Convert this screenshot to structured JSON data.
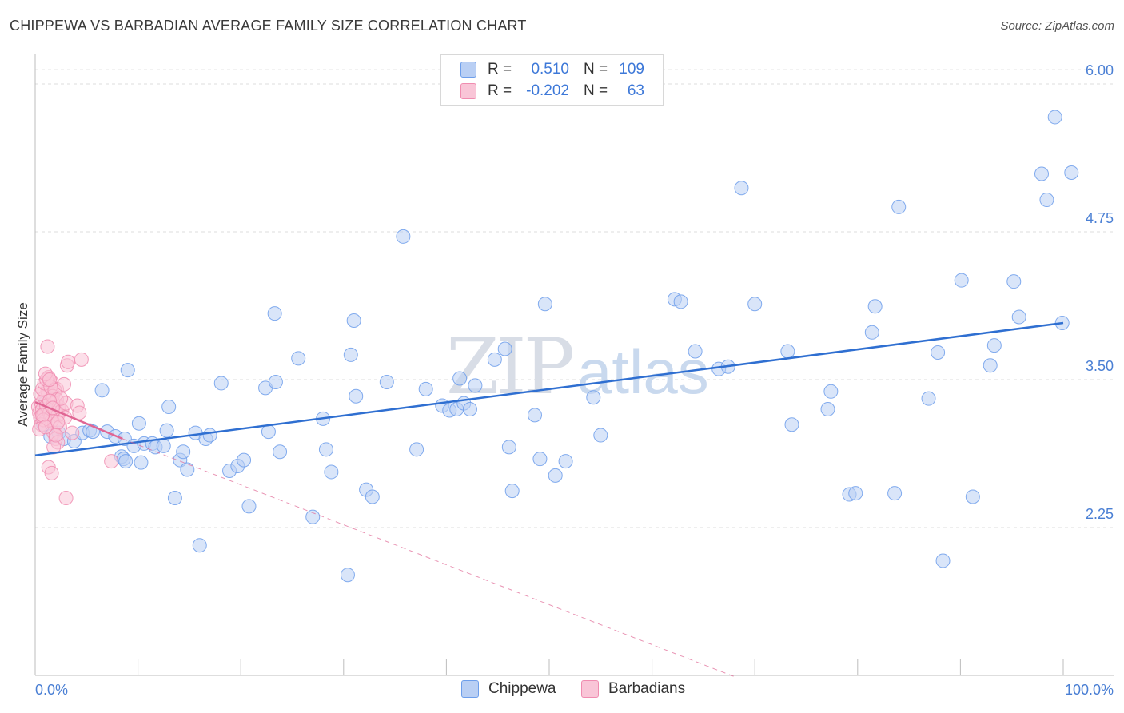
{
  "title": "CHIPPEWA VS BARBADIAN AVERAGE FAMILY SIZE CORRELATION CHART",
  "source": "Source: ZipAtlas.com",
  "watermark": {
    "zip": "ZIP",
    "atlas": "atlas"
  },
  "legend": {
    "rows": [
      {
        "r_label": "R =",
        "r_value": "0.510",
        "n_label": "N =",
        "n_value": "109",
        "color": "#6d9eeb",
        "fill": "#b9cff4"
      },
      {
        "r_label": "R =",
        "r_value": "-0.202",
        "n_label": "N =",
        "n_value": "63",
        "color": "#f08cb0",
        "fill": "#f9c5d7"
      }
    ]
  },
  "bottom_legend": [
    {
      "label": "Chippewa",
      "fill": "#b9cff4",
      "color": "#6d9eeb"
    },
    {
      "label": "Barbadians",
      "fill": "#f9c5d7",
      "color": "#f08cb0"
    }
  ],
  "chart_data": {
    "type": "scatter",
    "title": "CHIPPEWA VS BARBADIAN AVERAGE FAMILY SIZE CORRELATION CHART",
    "xlabel": "",
    "ylabel": "Average Family Size",
    "xlim": [
      0,
      100
    ],
    "ylim": [
      1.0,
      6.25
    ],
    "x_tick_labels": [
      {
        "value": 0,
        "label": "0.0%"
      },
      {
        "value": 100,
        "label": "100.0%"
      }
    ],
    "x_minor_ticks": [
      0,
      10,
      20,
      30,
      40,
      50,
      60,
      70,
      80,
      90,
      100
    ],
    "y_ticks": [
      {
        "value": 2.25,
        "label": "2.25"
      },
      {
        "value": 3.5,
        "label": "3.50"
      },
      {
        "value": 4.75,
        "label": "4.75"
      },
      {
        "value": 6.0,
        "label": "6.00"
      }
    ],
    "grid": "horizontal-dashed",
    "series": [
      {
        "name": "Chippewa",
        "color": "#6d9eeb",
        "fill": "#b9cff4",
        "trend": {
          "x": [
            0,
            100
          ],
          "y": [
            2.86,
            3.98
          ],
          "style": "solid",
          "color": "#2f6fd1"
        },
        "points": [
          [
            0.8,
            3.12
          ],
          [
            1.5,
            3.02
          ],
          [
            2.3,
            3.05
          ],
          [
            2.8,
            3.0
          ],
          [
            3.8,
            2.98
          ],
          [
            4.6,
            3.05
          ],
          [
            5.3,
            3.07
          ],
          [
            5.6,
            3.06
          ],
          [
            6.5,
            3.41
          ],
          [
            7.0,
            3.06
          ],
          [
            7.8,
            3.02
          ],
          [
            8.4,
            2.85
          ],
          [
            8.7,
            3.0
          ],
          [
            8.6,
            2.83
          ],
          [
            8.8,
            2.81
          ],
          [
            9.0,
            3.58
          ],
          [
            9.6,
            2.94
          ],
          [
            10.1,
            3.13
          ],
          [
            10.3,
            2.8
          ],
          [
            10.6,
            2.96
          ],
          [
            11.4,
            2.96
          ],
          [
            11.7,
            2.93
          ],
          [
            12.5,
            2.94
          ],
          [
            12.8,
            3.07
          ],
          [
            13.0,
            3.27
          ],
          [
            13.6,
            2.5
          ],
          [
            14.1,
            2.82
          ],
          [
            14.4,
            2.89
          ],
          [
            14.8,
            2.74
          ],
          [
            15.6,
            3.05
          ],
          [
            16.0,
            2.1
          ],
          [
            16.6,
            3.0
          ],
          [
            17.0,
            3.03
          ],
          [
            18.1,
            3.47
          ],
          [
            18.9,
            2.73
          ],
          [
            19.7,
            2.77
          ],
          [
            20.3,
            2.82
          ],
          [
            20.8,
            2.43
          ],
          [
            22.4,
            3.43
          ],
          [
            22.7,
            3.06
          ],
          [
            23.4,
            3.48
          ],
          [
            23.3,
            4.06
          ],
          [
            23.8,
            2.89
          ],
          [
            25.6,
            3.68
          ],
          [
            27.0,
            2.34
          ],
          [
            28.0,
            3.17
          ],
          [
            28.3,
            2.91
          ],
          [
            28.8,
            2.72
          ],
          [
            30.4,
            1.85
          ],
          [
            30.7,
            3.71
          ],
          [
            31.0,
            4.0
          ],
          [
            31.2,
            3.36
          ],
          [
            32.2,
            2.57
          ],
          [
            32.8,
            2.51
          ],
          [
            34.2,
            3.48
          ],
          [
            35.8,
            4.71
          ],
          [
            37.1,
            2.91
          ],
          [
            38.0,
            3.42
          ],
          [
            39.6,
            3.28
          ],
          [
            40.3,
            3.24
          ],
          [
            41.3,
            3.51
          ],
          [
            41.0,
            3.25
          ],
          [
            41.7,
            3.3
          ],
          [
            42.3,
            3.25
          ],
          [
            42.8,
            3.45
          ],
          [
            44.7,
            3.67
          ],
          [
            45.7,
            3.76
          ],
          [
            46.1,
            2.93
          ],
          [
            46.4,
            2.56
          ],
          [
            48.6,
            3.2
          ],
          [
            49.1,
            2.83
          ],
          [
            49.6,
            4.14
          ],
          [
            50.6,
            2.69
          ],
          [
            51.6,
            2.81
          ],
          [
            54.3,
            3.35
          ],
          [
            55.0,
            3.03
          ],
          [
            62.2,
            4.18
          ],
          [
            62.8,
            4.16
          ],
          [
            64.2,
            3.74
          ],
          [
            66.5,
            3.59
          ],
          [
            67.4,
            3.61
          ],
          [
            68.7,
            5.12
          ],
          [
            70.0,
            4.14
          ],
          [
            73.2,
            3.74
          ],
          [
            73.6,
            3.12
          ],
          [
            77.4,
            3.4
          ],
          [
            77.1,
            3.25
          ],
          [
            79.2,
            2.53
          ],
          [
            79.8,
            2.54
          ],
          [
            81.4,
            3.9
          ],
          [
            81.7,
            4.12
          ],
          [
            83.6,
            2.54
          ],
          [
            84.0,
            4.96
          ],
          [
            86.9,
            3.34
          ],
          [
            87.8,
            3.73
          ],
          [
            88.3,
            1.97
          ],
          [
            90.1,
            4.34
          ],
          [
            91.2,
            2.51
          ],
          [
            92.9,
            3.62
          ],
          [
            93.3,
            3.79
          ],
          [
            95.2,
            4.33
          ],
          [
            95.7,
            4.03
          ],
          [
            97.9,
            5.24
          ],
          [
            98.4,
            5.02
          ],
          [
            99.2,
            5.72
          ],
          [
            99.9,
            3.98
          ],
          [
            100.8,
            5.25
          ],
          [
            0.9,
            3.3
          ],
          [
            1.2,
            3.2
          ]
        ]
      },
      {
        "name": "Barbadians",
        "color": "#f08cb0",
        "fill": "#f9c5d7",
        "trend": {
          "x": [
            0,
            8.5
          ],
          "y": [
            3.31,
            3.0
          ],
          "style": "solid",
          "color": "#e06694",
          "extended": {
            "x": [
              8.5,
              68.0
            ],
            "y": [
              3.0,
              0.99
            ],
            "style": "dashed"
          }
        },
        "points": [
          [
            0.3,
            3.27
          ],
          [
            0.4,
            3.22
          ],
          [
            0.5,
            3.18
          ],
          [
            0.6,
            3.3
          ],
          [
            0.7,
            3.25
          ],
          [
            0.8,
            3.2
          ],
          [
            0.9,
            3.35
          ],
          [
            1.0,
            3.15
          ],
          [
            1.1,
            3.28
          ],
          [
            1.2,
            3.4
          ],
          [
            1.3,
            3.45
          ],
          [
            1.4,
            3.22
          ],
          [
            1.5,
            3.18
          ],
          [
            1.6,
            3.48
          ],
          [
            1.7,
            3.38
          ],
          [
            1.8,
            3.3
          ],
          [
            1.9,
            3.25
          ],
          [
            2.0,
            3.12
          ],
          [
            2.1,
            3.42
          ],
          [
            2.2,
            3.2
          ],
          [
            0.5,
            3.38
          ],
          [
            0.7,
            3.42
          ],
          [
            0.9,
            3.47
          ],
          [
            1.1,
            3.5
          ],
          [
            1.3,
            3.52
          ],
          [
            1.5,
            3.44
          ],
          [
            1.7,
            3.36
          ],
          [
            1.9,
            3.41
          ],
          [
            2.1,
            3.33
          ],
          [
            2.3,
            3.27
          ],
          [
            1.0,
            3.55
          ],
          [
            1.2,
            3.78
          ],
          [
            1.4,
            3.5
          ],
          [
            1.6,
            3.15
          ],
          [
            1.8,
            3.05
          ],
          [
            2.0,
            3.0
          ],
          [
            2.2,
            2.97
          ],
          [
            2.4,
            3.1
          ],
          [
            2.6,
            3.24
          ],
          [
            2.8,
            3.46
          ],
          [
            2.9,
            3.18
          ],
          [
            3.0,
            3.3
          ],
          [
            3.1,
            3.62
          ],
          [
            3.2,
            3.65
          ],
          [
            2.5,
            3.34
          ],
          [
            1.3,
            2.76
          ],
          [
            1.6,
            2.71
          ],
          [
            1.8,
            2.93
          ],
          [
            2.0,
            3.03
          ],
          [
            0.6,
            3.12
          ],
          [
            0.8,
            3.16
          ],
          [
            3.6,
            3.05
          ],
          [
            4.1,
            3.28
          ],
          [
            4.3,
            3.22
          ],
          [
            4.5,
            3.67
          ],
          [
            3.0,
            2.5
          ],
          [
            7.4,
            2.81
          ],
          [
            0.4,
            3.08
          ],
          [
            0.7,
            3.2
          ],
          [
            1.0,
            3.1
          ],
          [
            1.4,
            3.32
          ],
          [
            1.7,
            3.26
          ],
          [
            2.2,
            3.14
          ]
        ]
      }
    ]
  }
}
